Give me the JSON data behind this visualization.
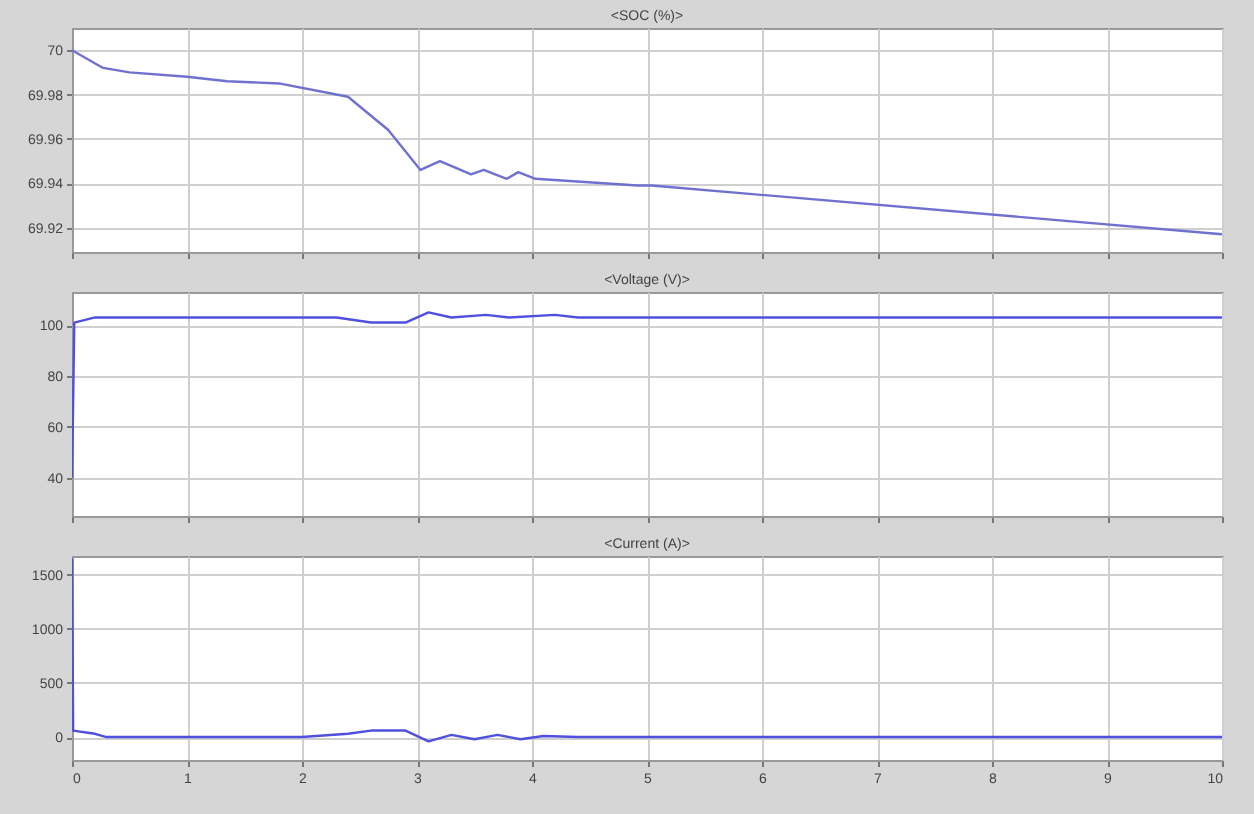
{
  "chart_data": [
    {
      "type": "line",
      "title": "<SOC (%)>",
      "xlim": [
        0,
        10
      ],
      "xticks": [
        0,
        1,
        2,
        3,
        4,
        5,
        6,
        7,
        8,
        9,
        10
      ],
      "ylim": [
        69.909,
        70.01
      ],
      "yticks": [
        69.92,
        69.94,
        69.96,
        69.98,
        70
      ],
      "grid": true,
      "tick_labels": "y",
      "series": [
        {
          "color": "#7070d0",
          "x": [
            0,
            0.27,
            0.5,
            1,
            1.35,
            1.8,
            2.4,
            2.75,
            3.03,
            3.2,
            3.47,
            3.58,
            3.78,
            3.88,
            4.03,
            4.92,
            5.04,
            10
          ],
          "values": [
            70.0,
            69.992,
            69.99,
            69.988,
            69.986,
            69.985,
            69.979,
            69.964,
            69.946,
            69.95,
            69.944,
            69.946,
            69.942,
            69.945,
            69.942,
            69.939,
            69.939,
            69.917
          ]
        }
      ]
    },
    {
      "type": "line",
      "title": "<Voltage (V)>",
      "xlim": [
        0,
        10
      ],
      "xticks": [
        0,
        1,
        2,
        3,
        4,
        5,
        6,
        7,
        8,
        9,
        10
      ],
      "ylim": [
        25,
        113
      ],
      "yticks": [
        40,
        60,
        80,
        100
      ],
      "grid": true,
      "tick_labels": "y",
      "series": [
        {
          "color": "#5050e0",
          "x": [
            0,
            0.02,
            0.2,
            1,
            2,
            2.3,
            2.6,
            2.9,
            3.1,
            3.3,
            3.6,
            3.8,
            4.2,
            4.4,
            5,
            10
          ],
          "values": [
            40,
            101,
            103,
            103,
            103,
            103,
            101,
            101,
            105,
            103,
            104,
            103,
            104,
            103,
            103,
            103
          ]
        }
      ]
    },
    {
      "type": "line",
      "title": "<Current (A)>",
      "xlim": [
        0,
        10
      ],
      "xticks": [
        0,
        1,
        2,
        3,
        4,
        5,
        6,
        7,
        8,
        9,
        10
      ],
      "ylim": [
        -212,
        1673
      ],
      "yticks": [
        0,
        500,
        1000,
        1500
      ],
      "grid": true,
      "series": [
        {
          "color": "#5050e0",
          "x": [
            0,
            0.01,
            0.2,
            0.3,
            2,
            2.4,
            2.6,
            2.9,
            3.1,
            3.3,
            3.5,
            3.7,
            3.9,
            4.1,
            4.4,
            10
          ],
          "values": [
            1650,
            60,
            30,
            0,
            0,
            30,
            60,
            60,
            -40,
            20,
            -20,
            20,
            -20,
            10,
            0,
            0
          ]
        }
      ]
    }
  ]
}
